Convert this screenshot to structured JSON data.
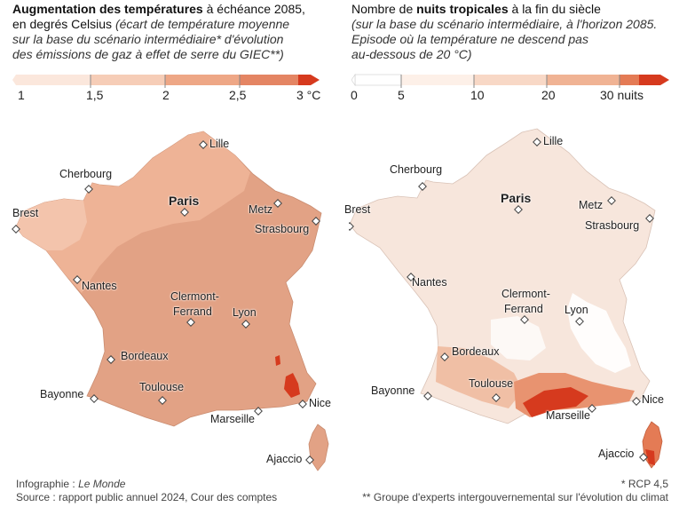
{
  "left": {
    "title_bold": "Augmentation des températures",
    "title_rest": " à échéance 2085,",
    "title_line2": "en degrés Celsius ",
    "title_italic_1": "(écart de température moyenne",
    "title_italic_2": "sur la base du scénario intermédiaire* d'évolution",
    "title_italic_3": "des émissions de gaz à effet de serre du GIEC**)",
    "legend": {
      "ticks": [
        "1",
        "1,5",
        "2",
        "2,5",
        "3 °C"
      ],
      "colors": [
        "#fbe7dc",
        "#f6cdb7",
        "#eea786",
        "#e48563",
        "#d63a1e"
      ]
    },
    "cities": {
      "lille": "Lille",
      "cherbourg": "Cherbourg",
      "brest": "Brest",
      "paris": "Paris",
      "metz": "Metz",
      "strasbourg": "Strasbourg",
      "nantes": "Nantes",
      "clermont_1": "Clermont-",
      "clermont_2": "Ferrand",
      "lyon": "Lyon",
      "bordeaux": "Bordeaux",
      "toulouse": "Toulouse",
      "bayonne": "Bayonne",
      "marseille": "Marseille",
      "nice": "Nice",
      "ajaccio": "Ajaccio"
    }
  },
  "right": {
    "title_pre": "Nombre de ",
    "title_bold": "nuits tropicales",
    "title_post": " à la fin du siècle",
    "title_italic_1": "(sur la base du scénario intermédiaire, à l'horizon 2085.",
    "title_italic_2": "Episode où la température ne descend pas",
    "title_italic_3": "au-dessous de 20 °C)",
    "legend": {
      "ticks": [
        "0",
        "5",
        "10",
        "20",
        "30 nuits"
      ],
      "colors": [
        "#ffffff",
        "#fdf0e8",
        "#f8d8c6",
        "#f0b394",
        "#e47b55",
        "#d63a1e"
      ]
    },
    "cities": {
      "lille": "Lille",
      "cherbourg": "Cherbourg",
      "brest": "Brest",
      "paris": "Paris",
      "metz": "Metz",
      "strasbourg": "Strasbourg",
      "nantes": "Nantes",
      "clermont_1": "Clermont-",
      "clermont_2": "Ferrand",
      "lyon": "Lyon",
      "bordeaux": "Bordeaux",
      "toulouse": "Toulouse",
      "bayonne": "Bayonne",
      "marseille": "Marseille",
      "nice": "Nice",
      "ajaccio": "Ajaccio"
    }
  },
  "footer": {
    "credit_prefix": "Infographie : ",
    "credit_italic": "Le Monde",
    "source": "Source : rapport public annuel 2024, Cour des comptes",
    "note_rcp": "* RCP 4,5",
    "note_giec": "** Groupe d'experts intergouvernemental sur l'évolution du climat"
  }
}
